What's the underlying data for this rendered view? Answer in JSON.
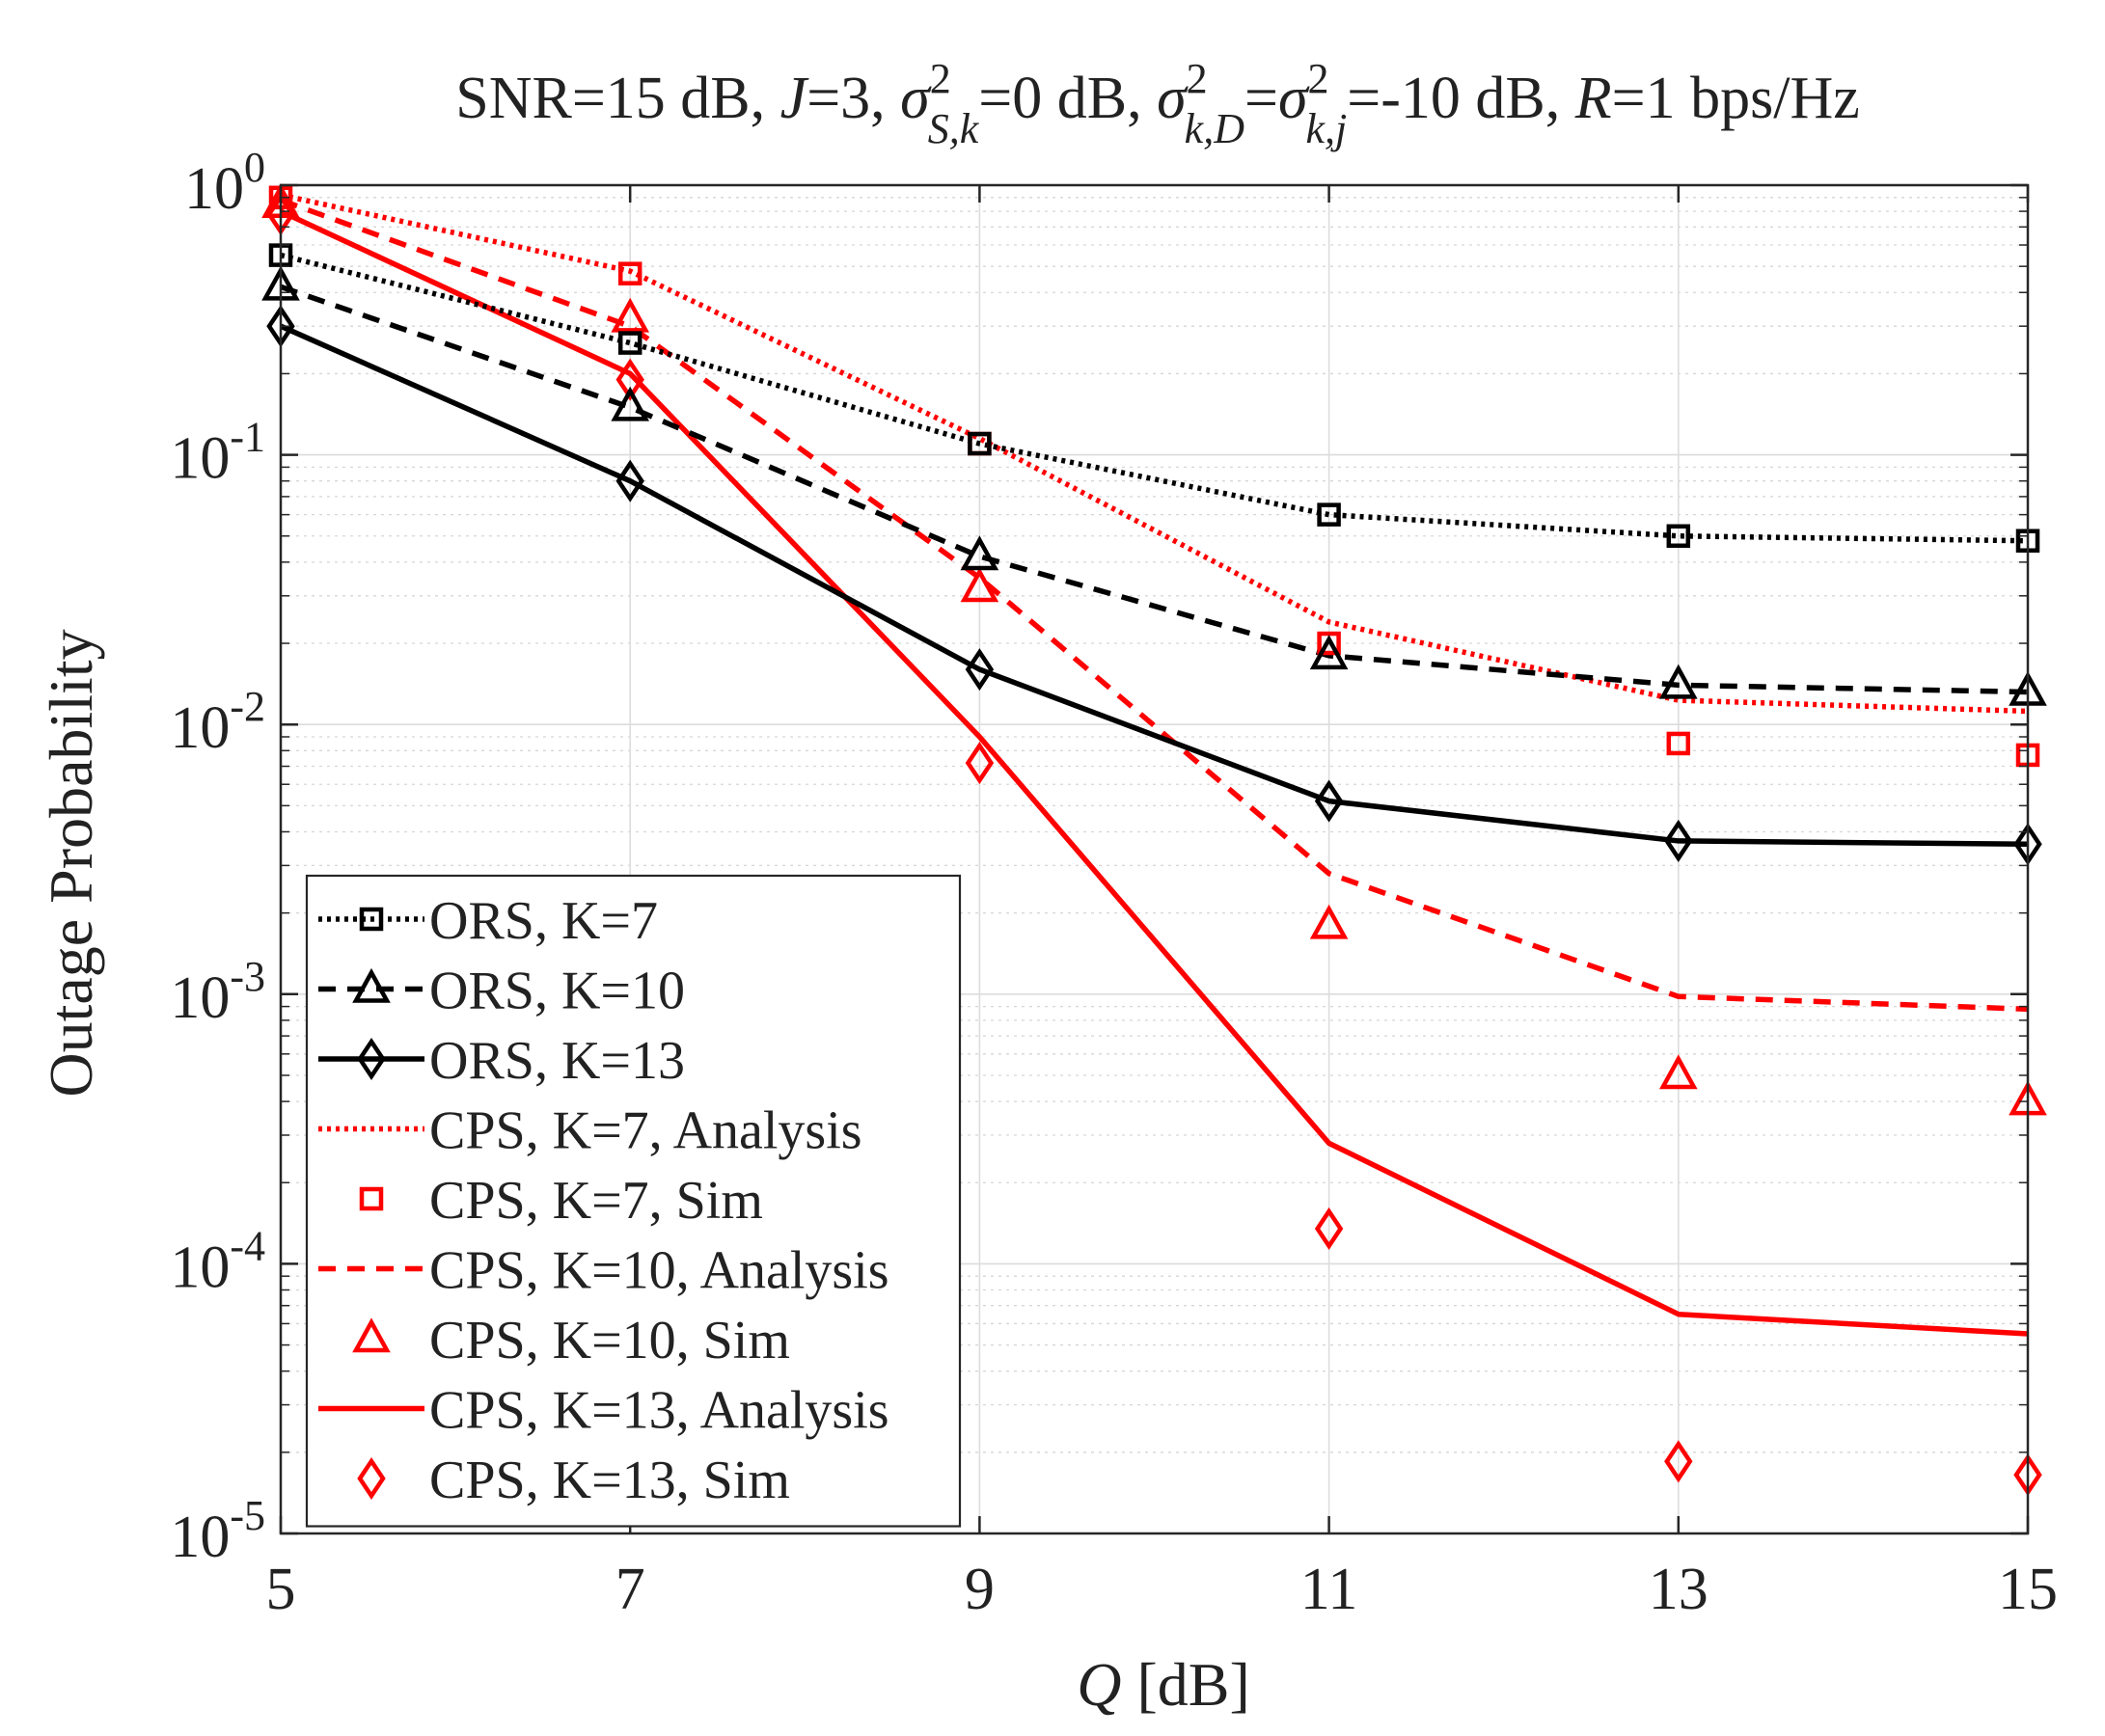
{
  "chart_data": {
    "type": "line",
    "title": {
      "prefix": "SNR=15 dB, ",
      "J_var": "J",
      "J_val": "=3, ",
      "sigma": "σ",
      "sq": "2",
      "sub1": "S,k",
      "mid1": "=0 dB, ",
      "sub2": "k,D",
      "eq": "=",
      "sub3": "k,j",
      "mid2": "=-10 dB, ",
      "R_var": "R",
      "suffix": "=1 bps/Hz"
    },
    "xlabel": {
      "var": "Q",
      "unit": " [dB]"
    },
    "ylabel": "Outage Probability",
    "x": [
      5,
      7,
      9,
      11,
      13,
      15
    ],
    "xlim": [
      5,
      15
    ],
    "yscale": "log",
    "ylim": [
      1e-05,
      1
    ],
    "xticks": [
      5,
      7,
      9,
      11,
      13,
      15
    ],
    "yticks": [
      {
        "value": 1,
        "base": "10",
        "exp": "0"
      },
      {
        "value": 0.1,
        "base": "10",
        "exp": "-1"
      },
      {
        "value": 0.01,
        "base": "10",
        "exp": "-2"
      },
      {
        "value": 0.001,
        "base": "10",
        "exp": "-3"
      },
      {
        "value": 0.0001,
        "base": "10",
        "exp": "-4"
      },
      {
        "value": 1e-05,
        "base": "10",
        "exp": "-5"
      }
    ],
    "grid": true,
    "legend_position": "bottom-left",
    "series": [
      {
        "name": "ORS, K=7",
        "color": "#000000",
        "line": "dotted",
        "marker": "square",
        "values": [
          0.55,
          0.26,
          0.11,
          0.06,
          0.05,
          0.048
        ]
      },
      {
        "name": "ORS, K=10",
        "color": "#000000",
        "line": "dashed",
        "marker": "triangle",
        "values": [
          0.42,
          0.15,
          0.042,
          0.018,
          0.014,
          0.0132
        ]
      },
      {
        "name": "ORS, K=13",
        "color": "#000000",
        "line": "solid",
        "marker": "diamond",
        "values": [
          0.3,
          0.08,
          0.016,
          0.0052,
          0.0037,
          0.0036
        ]
      },
      {
        "name": "CPS, K=7, Analysis",
        "color": "#ff0000",
        "line": "dotted",
        "marker": "none",
        "values": [
          0.92,
          0.48,
          0.115,
          0.024,
          0.0123,
          0.0112
        ]
      },
      {
        "name": "CPS, K=7, Sim",
        "color": "#ff0000",
        "line": "none",
        "marker": "square",
        "values": [
          0.9,
          0.47,
          0.11,
          0.02,
          0.0085,
          0.0077
        ]
      },
      {
        "name": "CPS, K=10, Analysis",
        "color": "#ff0000",
        "line": "dashed",
        "marker": "none",
        "values": [
          0.88,
          0.3,
          0.035,
          0.0028,
          0.00098,
          0.00088
        ]
      },
      {
        "name": "CPS, K=10, Sim",
        "color": "#ff0000",
        "line": "none",
        "marker": "triangle",
        "values": [
          0.85,
          0.32,
          0.032,
          0.0018,
          0.0005,
          0.0004
        ]
      },
      {
        "name": "CPS, K=13, Analysis",
        "color": "#ff0000",
        "line": "solid",
        "marker": "none",
        "values": [
          0.8,
          0.2,
          0.009,
          0.00028,
          6.5e-05,
          5.5e-05
        ]
      },
      {
        "name": "CPS, K=13, Sim",
        "color": "#ff0000",
        "line": "none",
        "marker": "diamond",
        "values": [
          0.78,
          0.19,
          0.0072,
          0.000135,
          1.85e-05,
          1.65e-05
        ]
      }
    ]
  }
}
